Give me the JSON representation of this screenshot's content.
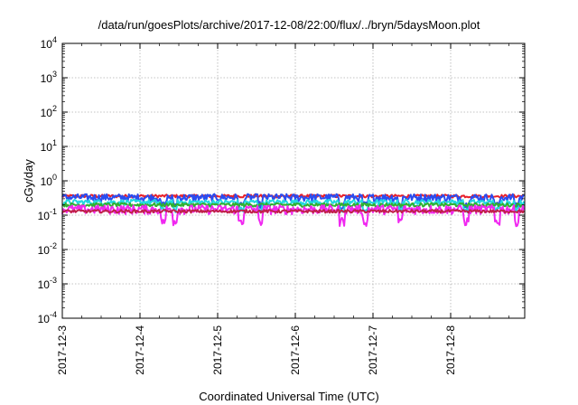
{
  "chart_data": {
    "type": "line",
    "title": "/data/run/goesPlots/archive/2017-12-08/22:00/flux/../bryn/5daysMoon.plot",
    "xlabel": "Coordinated Universal Time (UTC)",
    "ylabel": "cGy/day",
    "x_ticks": [
      "2017-12-3",
      "2017-12-4",
      "2017-12-5",
      "2017-12-6",
      "2017-12-7",
      "2017-12-8"
    ],
    "xlim_days": [
      0,
      6.0
    ],
    "y_scale": "log",
    "ylim": [
      0.0001,
      10000
    ],
    "y_ticks": [
      {
        "base": "10",
        "exp": "-4"
      },
      {
        "base": "10",
        "exp": "-3"
      },
      {
        "base": "10",
        "exp": "-2"
      },
      {
        "base": "10",
        "exp": "-1"
      },
      {
        "base": "10",
        "exp": "0"
      },
      {
        "base": "10",
        "exp": "1"
      },
      {
        "base": "10",
        "exp": "2"
      },
      {
        "base": "10",
        "exp": "3"
      },
      {
        "base": "10",
        "exp": "4"
      }
    ],
    "grid": true,
    "series": [
      {
        "color": "#e8202a",
        "level": 0.36,
        "noise": 0.1
      },
      {
        "color": "#2a4cf0",
        "level": 0.33,
        "noise": 0.25
      },
      {
        "color": "#22d8e0",
        "level": 0.24,
        "noise": 0.18
      },
      {
        "color": "#30b030",
        "level": 0.2,
        "noise": 0.12
      },
      {
        "color": "#f028f0",
        "level": 0.15,
        "noise": 0.3
      },
      {
        "color": "#c0204a",
        "level": 0.13,
        "noise": 0.1
      }
    ]
  }
}
